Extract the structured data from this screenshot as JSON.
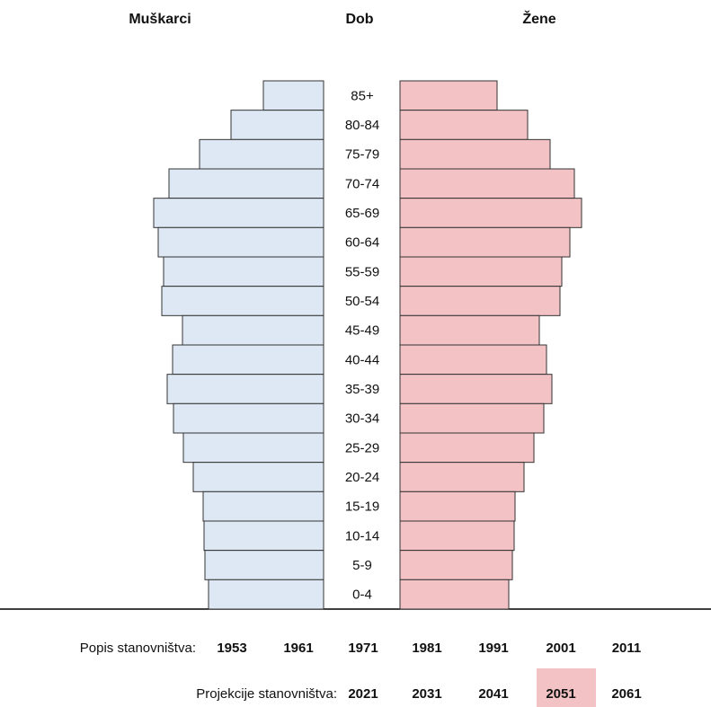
{
  "chart_data": {
    "type": "pyramid",
    "headers": {
      "left": "Muškarci",
      "center": "Dob",
      "right": "Žene"
    },
    "categories": [
      "85+",
      "80-84",
      "75-79",
      "70-74",
      "65-69",
      "60-64",
      "55-59",
      "50-54",
      "45-49",
      "40-44",
      "35-39",
      "30-34",
      "25-29",
      "20-24",
      "15-19",
      "10-14",
      "5-9",
      "0-4"
    ],
    "series": [
      {
        "name": "Muškarci",
        "color": "#dde8f4",
        "values": [
          67,
          103,
          138,
          172,
          189,
          184,
          178,
          180,
          157,
          168,
          174,
          167,
          156,
          145,
          134,
          133,
          132,
          128
        ]
      },
      {
        "name": "Žene",
        "color": "#f3c2c4",
        "values": [
          108,
          142,
          167,
          194,
          202,
          189,
          180,
          178,
          155,
          163,
          169,
          160,
          149,
          138,
          128,
          127,
          125,
          121
        ]
      }
    ]
  },
  "census": {
    "label": "Popis stanovništva:",
    "years": [
      "1953",
      "1961",
      "1971",
      "1981",
      "1991",
      "2001",
      "2011"
    ]
  },
  "projections": {
    "label": "Projekcije stanovništva:",
    "years": [
      "2021",
      "2031",
      "2041",
      "2051",
      "2061"
    ],
    "selected": 3,
    "selected_color": "#f3c2c4"
  }
}
